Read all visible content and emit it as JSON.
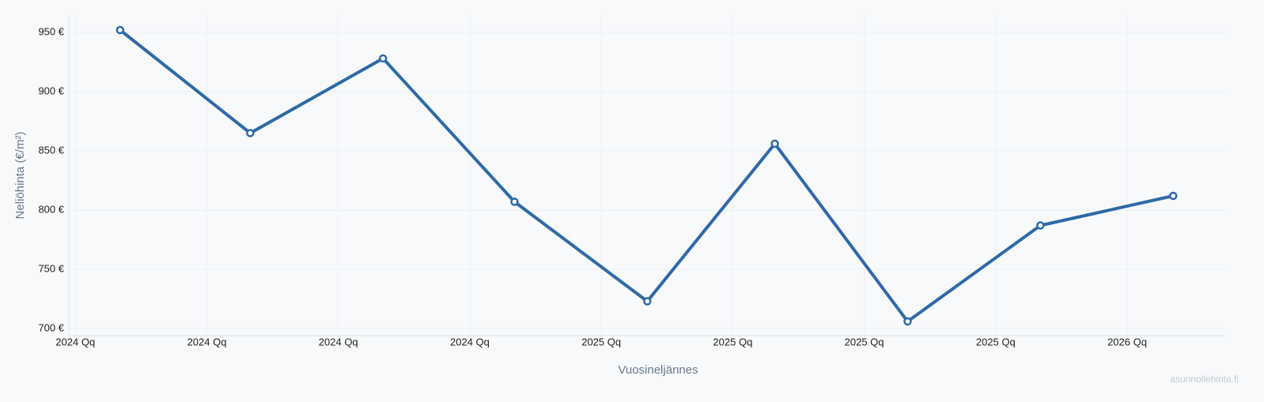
{
  "chart_data": {
    "type": "line",
    "y_label": "Neliöhinta (€/m²)",
    "x_label": "Vuosineljännes",
    "watermark": "asunnollehinta.fi",
    "x": [
      0.34,
      1.33,
      2.34,
      3.34,
      4.35,
      5.32,
      6.33,
      7.34,
      8.35
    ],
    "series": [
      {
        "color": "#2f6aa6",
        "values": [
          952,
          865,
          928,
          807,
          723,
          856,
          706,
          787,
          812
        ]
      }
    ],
    "xlim": [
      -0.05,
      8.74
    ],
    "xticks": [
      {
        "value": 0,
        "label": "2024 Qq"
      },
      {
        "value": 1,
        "label": "2024 Qq"
      },
      {
        "value": 2,
        "label": "2024 Qq"
      },
      {
        "value": 3,
        "label": "2024 Qq"
      },
      {
        "value": 4,
        "label": "2025 Qq"
      },
      {
        "value": 5,
        "label": "2025 Qq"
      },
      {
        "value": 6,
        "label": "2025 Qq"
      },
      {
        "value": 7,
        "label": "2025 Qq"
      },
      {
        "value": 8,
        "label": "2026 Qq"
      }
    ],
    "ylim": [
      694,
      964
    ],
    "yticks": [
      {
        "value": 700,
        "label": "700 €"
      },
      {
        "value": 750,
        "label": "750 €"
      },
      {
        "value": 800,
        "label": "800 €"
      },
      {
        "value": 850,
        "label": "850 €"
      },
      {
        "value": 900,
        "label": "900 €"
      },
      {
        "value": 950,
        "label": "950 €"
      }
    ],
    "grid": true
  }
}
